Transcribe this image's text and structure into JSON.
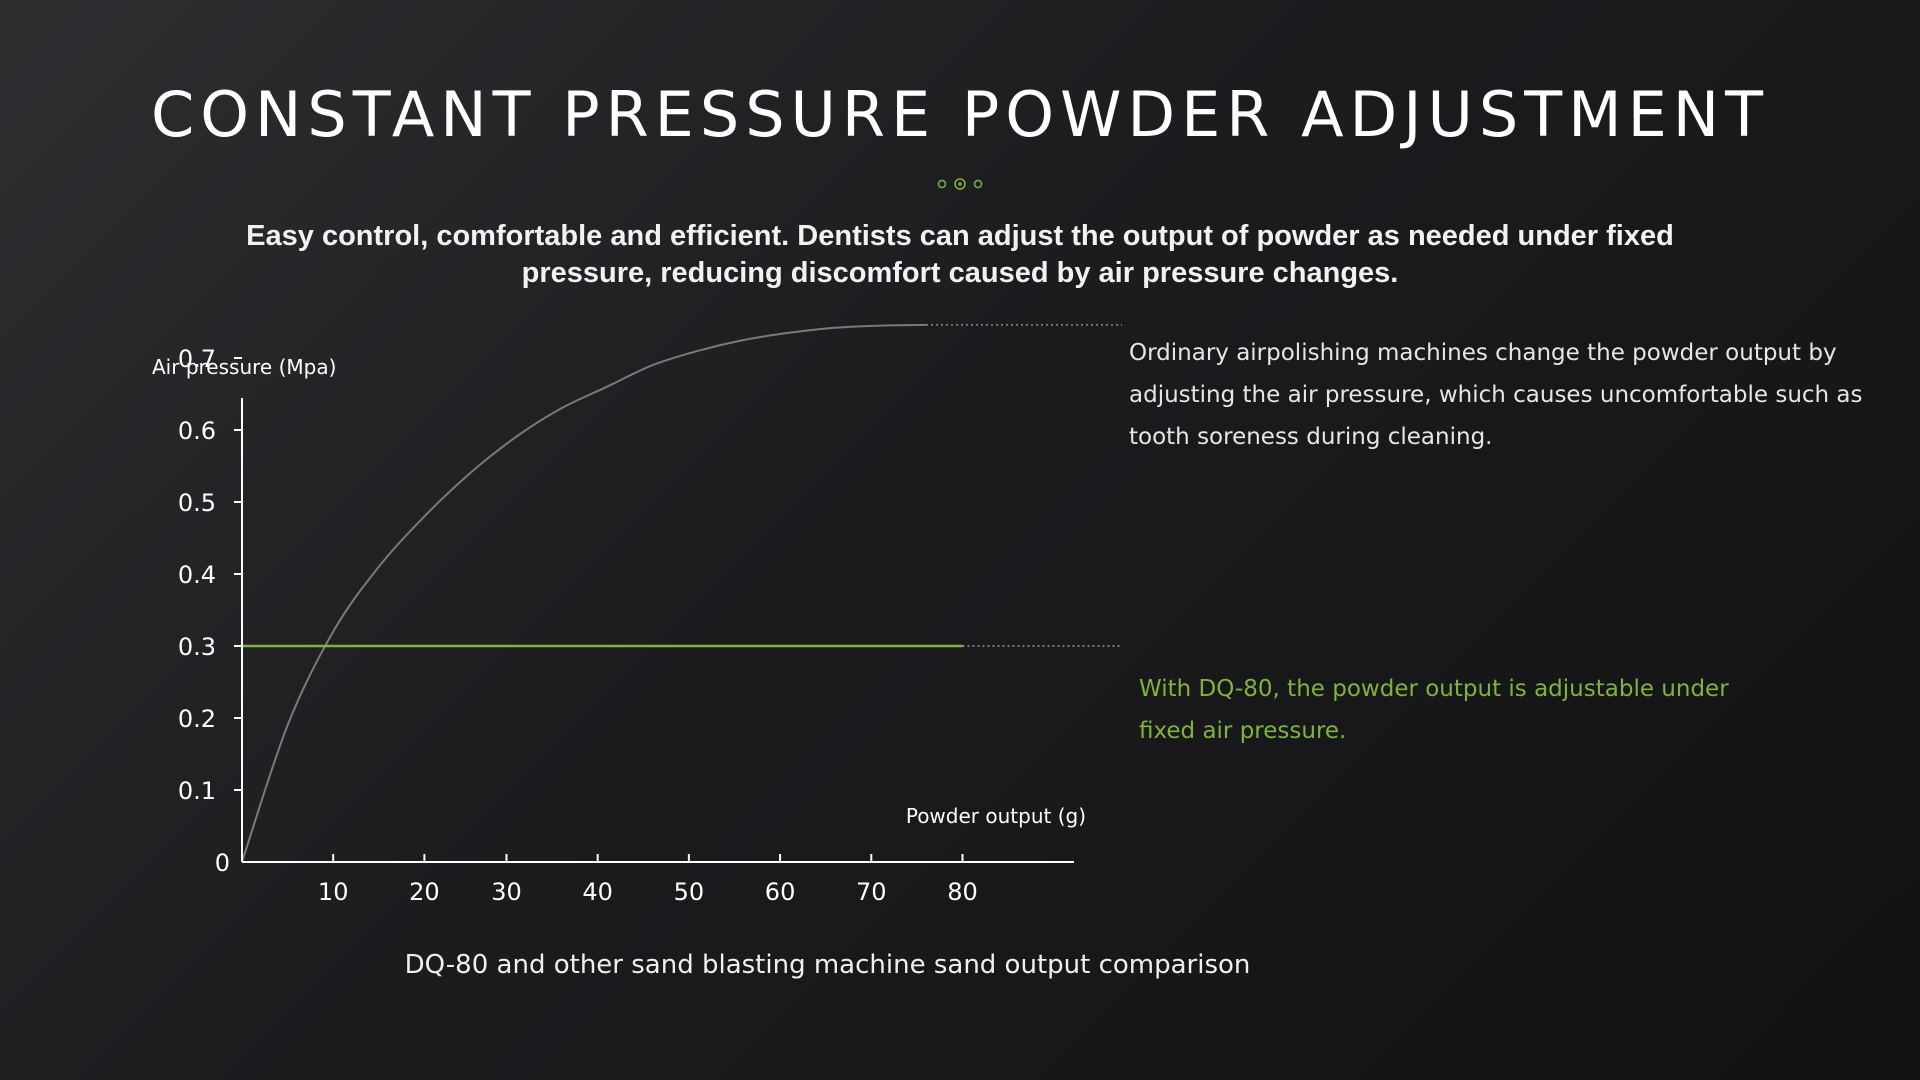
{
  "header": {
    "title": "CONSTANT PRESSURE POWDER ADJUSTMENT",
    "subtitle": "Easy control, comfortable and efficient. Dentists can adjust the output of powder as needed under fixed pressure, reducing discomfort caused by air pressure changes."
  },
  "notes": {
    "ordinary": "Ordinary airpolishing machines change the powder output by adjusting the air pressure, which causes uncomfortable such as tooth soreness during cleaning.",
    "dq80": "With DQ-80, the powder output is adjustable under fixed air pressure."
  },
  "caption": "DQ-80 and other sand blasting machine sand output comparison",
  "colors": {
    "accent": "#7fb43a",
    "curve": "#7a7a7a",
    "axis": "#ffffff"
  },
  "chart_data": {
    "type": "line",
    "title": "",
    "xlabel": "Powder output (g)",
    "ylabel": "Air pressure (Mpa)",
    "xlim": [
      0,
      92
    ],
    "ylim": [
      0,
      0.8
    ],
    "x_ticks": [
      "10",
      "20",
      "30",
      "40",
      "50",
      "60",
      "70",
      "80"
    ],
    "x_tick_values": [
      10,
      20,
      29,
      39,
      49,
      59,
      69,
      79
    ],
    "y_ticks": [
      "0",
      "0.1",
      "0.2",
      "0.3",
      "0.4",
      "0.5",
      "0.6",
      "0.7"
    ],
    "y_tick_values": [
      0,
      0.1,
      0.2,
      0.3,
      0.4,
      0.5,
      0.6,
      0.7
    ],
    "series": [
      {
        "color": "#7a7a7a",
        "x": [
          0,
          5,
          10,
          15,
          20,
          25,
          30,
          35,
          40,
          45,
          50,
          55,
          60,
          65,
          70,
          75
        ],
        "y": [
          0,
          0.19,
          0.32,
          0.41,
          0.48,
          0.54,
          0.59,
          0.63,
          0.66,
          0.69,
          0.71,
          0.725,
          0.735,
          0.742,
          0.745,
          0.746
        ]
      },
      {
        "color": "#7fb43a",
        "x": [
          0,
          79
        ],
        "y": [
          0.3,
          0.3
        ]
      }
    ]
  }
}
